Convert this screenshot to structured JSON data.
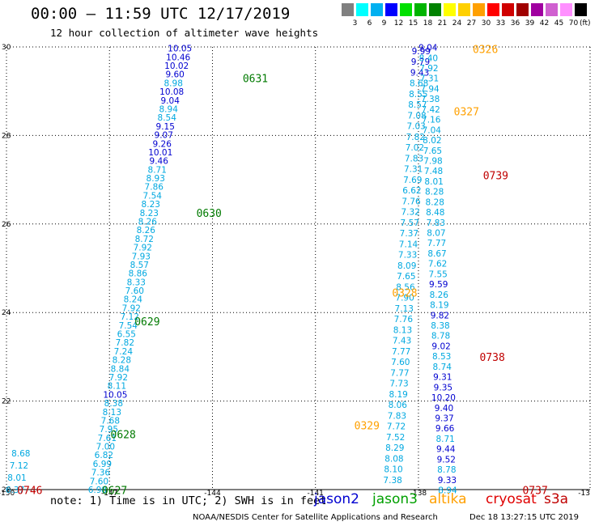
{
  "header": {
    "title": "00:00 – 11:59 UTC 12/17/2019",
    "subtitle": "12 hour collection of altimeter wave heights"
  },
  "legend": {
    "colors": [
      "#808080",
      "#00ffff",
      "#00b0f0",
      "#0000ff",
      "#00e000",
      "#00b400",
      "#008200",
      "#ffff00",
      "#ffd000",
      "#ffa000",
      "#ff0000",
      "#d00000",
      "#a00000",
      "#a000a0",
      "#d060d0",
      "#ff90ff",
      "#000000"
    ],
    "labels": [
      "3",
      "6",
      "9",
      "12",
      "15",
      "18",
      "21",
      "24",
      "27",
      "30",
      "33",
      "36",
      "39",
      "42",
      "45",
      "70"
    ],
    "unit": "(ft)"
  },
  "chart_data": {
    "type": "scatter",
    "x_ticks": [
      "-150",
      "-147",
      "-144",
      "-141",
      "-138",
      "-13"
    ],
    "y_ticks": [
      "20",
      "22",
      "24",
      "26",
      "28",
      "30"
    ],
    "xlim": [
      -150,
      -133
    ],
    "ylim": [
      20,
      30
    ],
    "color_scale": {
      "bins": [
        3,
        6,
        9,
        12,
        15,
        18,
        21,
        24,
        27,
        30,
        33,
        36,
        39,
        42,
        45,
        70
      ],
      "colors": [
        "#808080",
        "#00a8e0",
        "#00a8e0",
        "#0000d0",
        "#00a000",
        "#00a000",
        "#007a00",
        "#d0c000",
        "#ffa000",
        "#ffa000",
        "#e00000",
        "#c00000",
        "#a00000",
        "#a000a0",
        "#d060d0",
        "#ff90ff",
        "#000000"
      ]
    },
    "tracks": [
      {
        "lon_start": -147.35,
        "lat_start": 20.0,
        "lon_end": -144.95,
        "lat_end": 29.97,
        "values": [
          "6.98",
          "7.60",
          "7.36",
          "6.99",
          "6.82",
          "7.00",
          "7.61",
          "7.95",
          "7.68",
          "8.13",
          "8.38",
          "10.05",
          "8.11",
          "7.92",
          "8.84",
          "8.28",
          "7.24",
          "7.82",
          "6.55",
          "7.54",
          "7.12",
          "7.92",
          "8.24",
          "7.60",
          "8.33",
          "8.86",
          "8.57",
          "7.93",
          "7.92",
          "8.72",
          "8.26",
          "8.26",
          "8.23",
          "8.23",
          "7.54",
          "7.86",
          "8.93",
          "8.71",
          "9.46",
          "10.01",
          "9.26",
          "9.07",
          "9.15",
          "8.54",
          "8.94",
          "9.04",
          "10.08",
          "8.98",
          "9.60",
          "10.02",
          "10.46",
          "10.05"
        ]
      },
      {
        "lon_start": -149.75,
        "lat_start": 20.0,
        "lon_end": -149.58,
        "lat_end": 20.82,
        "values": [
          "6.37",
          "8.01",
          "7.12",
          "8.68"
        ]
      },
      {
        "lon_start": -138.75,
        "lat_start": 20.22,
        "lon_end": -137.92,
        "lat_end": 29.91,
        "values": [
          "7.38",
          "8.10",
          "8.08",
          "8.29",
          "7.52",
          "7.72",
          "7.83",
          "8.06",
          "8.19",
          "7.73",
          "7.77",
          "7.60",
          "7.77",
          "7.43",
          "8.13",
          "7.76",
          "7.13",
          "7.90",
          "8.56",
          "7.65",
          "8.09",
          "7.33",
          "7.14",
          "7.37",
          "7.57",
          "7.32",
          "7.76",
          "6.62",
          "7.69",
          "7.31",
          "7.83",
          "7.02",
          "7.82",
          "7.03",
          "7.08",
          "8.57",
          "8.55",
          "8.68",
          "9.43",
          "9.79",
          "9.99"
        ]
      },
      {
        "lon_start": -137.15,
        "lat_start": 19.99,
        "lon_end": -137.72,
        "lat_end": 29.99,
        "values": [
          "8.94",
          "9.33",
          "8.78",
          "9.52",
          "9.44",
          "8.71",
          "9.66",
          "9.37",
          "9.40",
          "10.20",
          "9.35",
          "9.31",
          "8.74",
          "8.53",
          "9.02",
          "8.78",
          "8.38",
          "9.82",
          "8.19",
          "8.26",
          "9.59",
          "7.55",
          "7.62",
          "8.67",
          "7.77",
          "8.07",
          "7.83",
          "8.48",
          "8.28",
          "8.28",
          "8.01",
          "7.48",
          "7.98",
          "7.65",
          "8.02",
          "7.04",
          "7.16",
          "7.42",
          "7.38",
          "7.94",
          "7.31",
          "7.92",
          "8.40",
          "9.04"
        ]
      }
    ],
    "time_labels": [
      {
        "text": "0746",
        "lon": -149.32,
        "lat": 19.99,
        "color": "#c00000"
      },
      {
        "text": "0627",
        "lon": -146.85,
        "lat": 19.99,
        "color": "#007a00"
      },
      {
        "text": "0628",
        "lon": -146.6,
        "lat": 21.25,
        "color": "#007a00"
      },
      {
        "text": "0629",
        "lon": -145.9,
        "lat": 23.8,
        "color": "#007a00"
      },
      {
        "text": "0630",
        "lon": -144.1,
        "lat": 26.25,
        "color": "#007a00"
      },
      {
        "text": "0631",
        "lon": -142.75,
        "lat": 29.3,
        "color": "#007a00"
      },
      {
        "text": "0326",
        "lon": -136.05,
        "lat": 29.95,
        "color": "#ffa000"
      },
      {
        "text": "0327",
        "lon": -136.6,
        "lat": 28.55,
        "color": "#ffa000"
      },
      {
        "text": "0328",
        "lon": -138.4,
        "lat": 24.45,
        "color": "#ffa000"
      },
      {
        "text": "0329",
        "lon": -139.5,
        "lat": 21.45,
        "color": "#ffa000"
      },
      {
        "text": "0739",
        "lon": -135.75,
        "lat": 27.1,
        "color": "#c00000"
      },
      {
        "text": "0738",
        "lon": -135.85,
        "lat": 23.0,
        "color": "#c00000"
      },
      {
        "text": "0737",
        "lon": -134.6,
        "lat": 19.99,
        "color": "#c00000"
      }
    ]
  },
  "footer": {
    "note": "note: 1) Time is in UTC; 2) SWH is in feet",
    "satellites": [
      {
        "name": "jason2",
        "color": "#0000d0"
      },
      {
        "name": "jason3",
        "color": "#00a000"
      },
      {
        "name": "altika",
        "color": "#ffa000"
      },
      {
        "name": "cryosat",
        "color": "#e00000"
      },
      {
        "name": "s3a",
        "color": "#c00000"
      }
    ],
    "credit": "NOAA/NESDIS Center for Satellite Applications and Research",
    "timestamp": "Dec 18 13:27:15 UTC 2019"
  }
}
